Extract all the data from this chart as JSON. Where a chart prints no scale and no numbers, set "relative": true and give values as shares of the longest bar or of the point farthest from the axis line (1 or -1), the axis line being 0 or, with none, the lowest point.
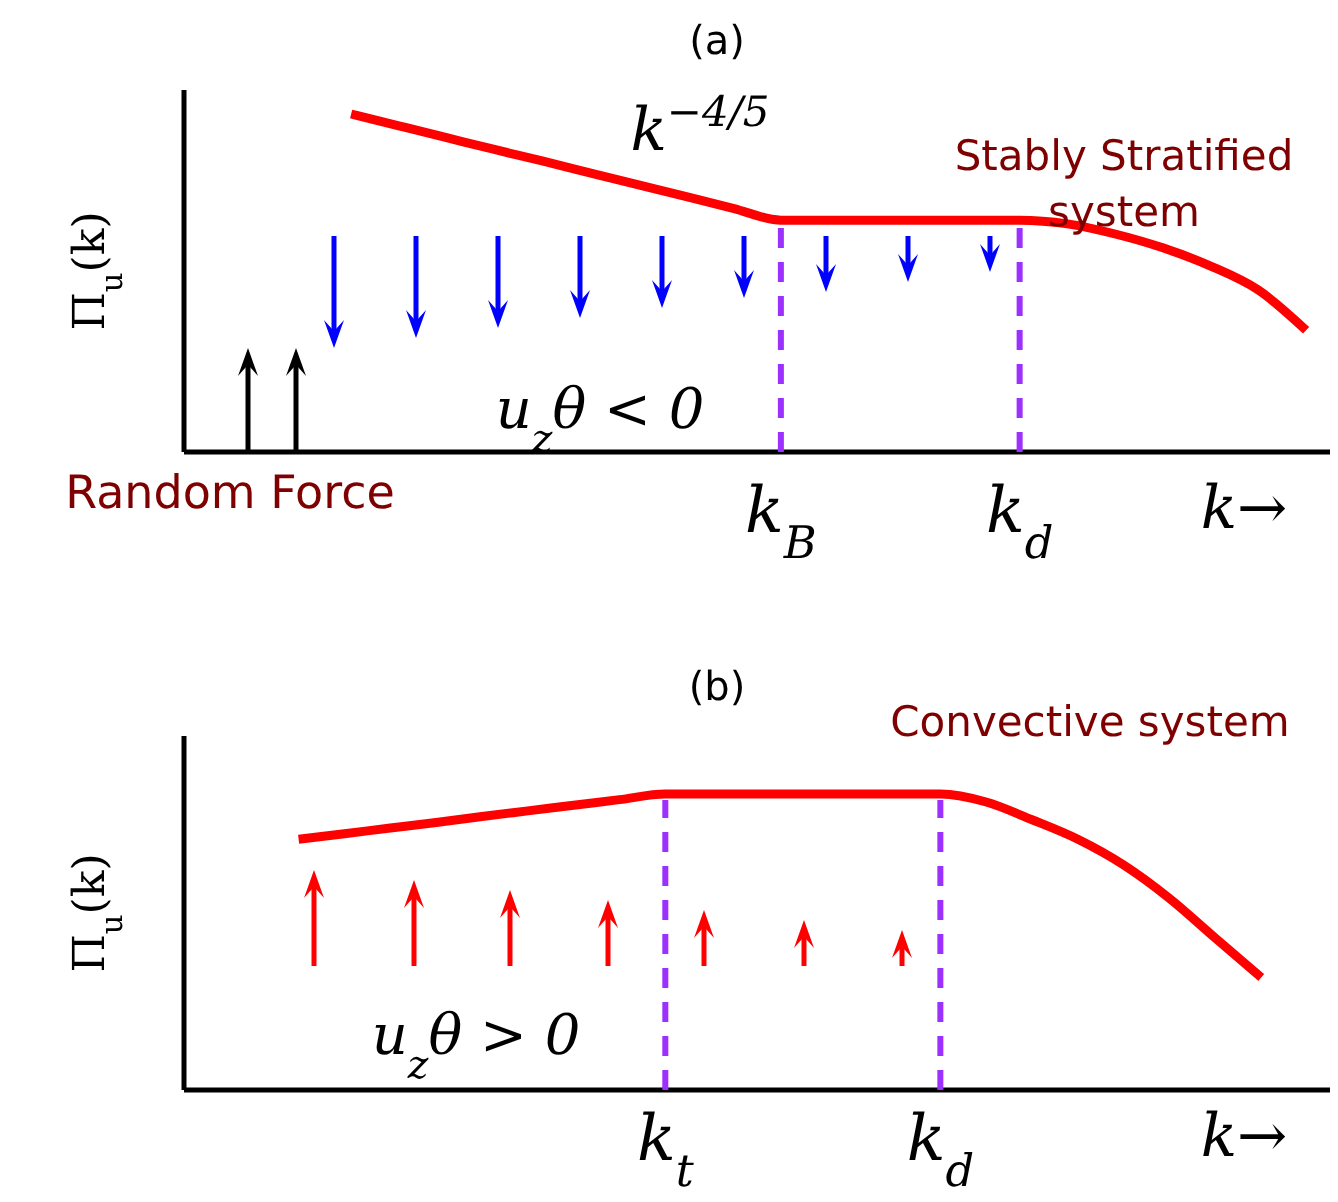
{
  "chart_data": [
    {
      "type": "line",
      "relative": true,
      "title": "(a)",
      "ylabel": "Π$_{u}$(k)",
      "xlabel": "k→",
      "categories": [
        null,
        null,
        null,
        null,
        null,
        null,
        null,
        null,
        null,
        null,
        null,
        null,
        "k$_{B}$",
        null,
        null,
        null,
        null,
        "k$_{d}$",
        null,
        null,
        null,
        null,
        null,
        null
      ],
      "series": [
        {
          "color": "#ff0000",
          "values": [
            null,
            null,
            null,
            1,
            0.965,
            0.93,
            0.895,
            0.861,
            0.826,
            0.791,
            0.756,
            0.721,
            0.686,
            0.686,
            0.686,
            0.686,
            0.686,
            0.686,
            0.675,
            0.645,
            0.604,
            0.55,
            0.479,
            0.36
          ]
        }
      ],
      "ref_lines": [
        {
          "axis": "x",
          "value": "k$_{B}$",
          "color": "#9b30ff",
          "line_style": "dashed"
        },
        {
          "axis": "x",
          "value": "k$_{d}$",
          "color": "#9b30ff",
          "line_style": "dashed"
        }
      ],
      "annotations": [
        "k$^{−4/5}$",
        "Stably Stratified system",
        "u$_{z}$θ < 0",
        "Random Force"
      ]
    },
    {
      "type": "line",
      "relative": true,
      "title": "(b)",
      "ylabel": "Π$_{u}$(k)",
      "xlabel": "k→",
      "categories": [
        null,
        null,
        null,
        null,
        null,
        null,
        null,
        null,
        null,
        null,
        "k$_{t}$",
        null,
        null,
        null,
        null,
        null,
        "k$_{d}$",
        null,
        null,
        null,
        null,
        null,
        null,
        null,
        null
      ],
      "series": [
        {
          "color": "#ff0000",
          "values": [
            null,
            null,
            0.847,
            0.866,
            0.885,
            0.904,
            0.924,
            0.943,
            0.962,
            0.981,
            1,
            1,
            1,
            1,
            1,
            1,
            1,
            0.973,
            0.913,
            0.847,
            0.76,
            0.647,
            0.513,
            0.38,
            null
          ]
        }
      ],
      "ref_lines": [
        {
          "axis": "x",
          "value": "k$_{t}$",
          "color": "#9b30ff",
          "line_style": "dashed"
        },
        {
          "axis": "x",
          "value": "k$_{d}$",
          "color": "#9b30ff",
          "line_style": "dashed"
        }
      ],
      "annotations": [
        "Convective system",
        "u$_{z}$θ > 0"
      ]
    }
  ]
}
